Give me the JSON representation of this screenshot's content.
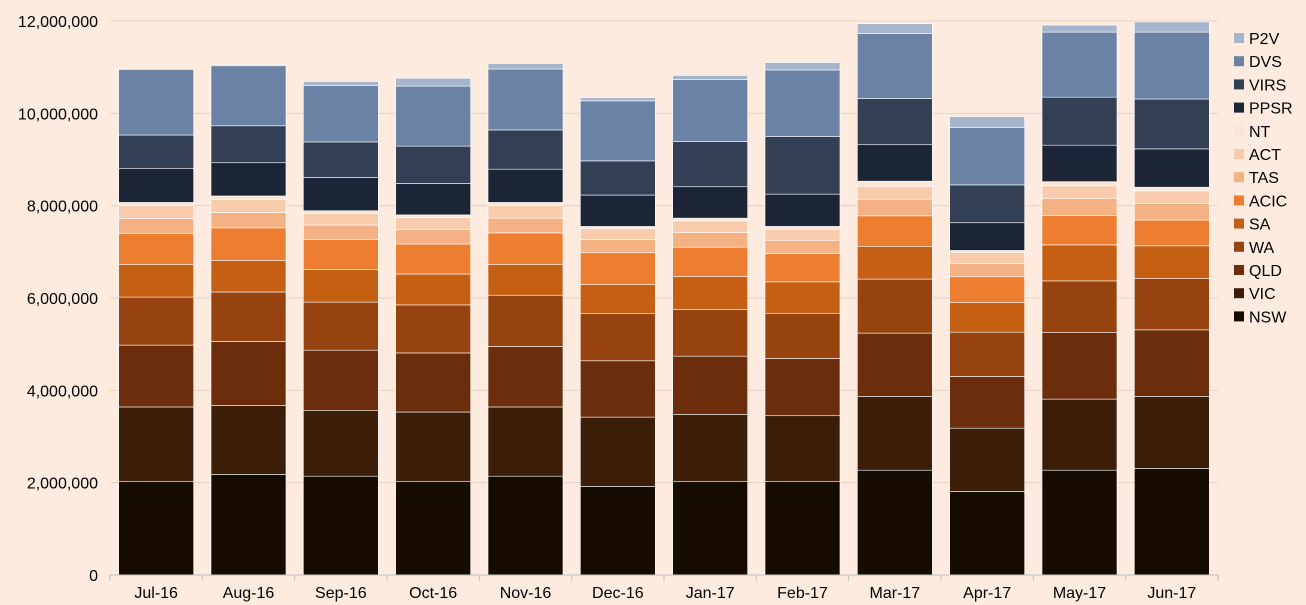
{
  "chart_data": {
    "type": "bar",
    "stacked": true,
    "title": "",
    "xlabel": "",
    "ylabel": "",
    "ylim": [
      0,
      12000000
    ],
    "yticks": [
      0,
      2000000,
      4000000,
      6000000,
      8000000,
      10000000,
      12000000
    ],
    "ytick_labels": [
      "0",
      "2,000,000",
      "4,000,000",
      "6,000,000",
      "8,000,000",
      "10,000,000",
      "12,000,000"
    ],
    "grid": true,
    "legend_position": "right",
    "categories": [
      "Jul-16",
      "Aug-16",
      "Sep-16",
      "Oct-16",
      "Nov-16",
      "Dec-16",
      "Jan-17",
      "Feb-17",
      "Mar-17",
      "Apr-17",
      "May-17",
      "Jun-17"
    ],
    "series": [
      {
        "name": "NSW",
        "color": "#170c02",
        "values": [
          2030000,
          2180000,
          2140000,
          2030000,
          2140000,
          1920000,
          2030000,
          2030000,
          2270000,
          1810000,
          2270000,
          2310000
        ]
      },
      {
        "name": "VIC",
        "color": "#3b1d08",
        "values": [
          1610000,
          1490000,
          1420000,
          1500000,
          1500000,
          1500000,
          1450000,
          1420000,
          1600000,
          1370000,
          1540000,
          1560000
        ]
      },
      {
        "name": "QLD",
        "color": "#6b2d0b",
        "values": [
          1340000,
          1390000,
          1310000,
          1280000,
          1310000,
          1220000,
          1260000,
          1240000,
          1370000,
          1120000,
          1440000,
          1440000
        ]
      },
      {
        "name": "WA",
        "color": "#96430f",
        "values": [
          1040000,
          1070000,
          1040000,
          1040000,
          1110000,
          1020000,
          1010000,
          980000,
          1170000,
          960000,
          1120000,
          1110000
        ]
      },
      {
        "name": "SA",
        "color": "#c55f14",
        "values": [
          710000,
          680000,
          710000,
          670000,
          670000,
          630000,
          720000,
          680000,
          710000,
          640000,
          780000,
          710000
        ]
      },
      {
        "name": "ACIC",
        "color": "#ed7d31",
        "values": [
          670000,
          710000,
          650000,
          650000,
          680000,
          690000,
          630000,
          610000,
          660000,
          560000,
          640000,
          560000
        ]
      },
      {
        "name": "TAS",
        "color": "#f4b183",
        "values": [
          320000,
          330000,
          310000,
          310000,
          320000,
          290000,
          320000,
          290000,
          360000,
          290000,
          370000,
          360000
        ]
      },
      {
        "name": "ACT",
        "color": "#f8cbad",
        "values": [
          280000,
          280000,
          250000,
          260000,
          270000,
          230000,
          250000,
          240000,
          280000,
          240000,
          270000,
          270000
        ]
      },
      {
        "name": "NT",
        "color": "#fbe5d6",
        "values": [
          70000,
          80000,
          60000,
          60000,
          70000,
          50000,
          60000,
          60000,
          110000,
          40000,
          90000,
          80000
        ]
      },
      {
        "name": "PPSR",
        "color": "#1c2536",
        "values": [
          740000,
          720000,
          720000,
          680000,
          720000,
          680000,
          680000,
          700000,
          790000,
          600000,
          790000,
          830000
        ]
      },
      {
        "name": "VIRS",
        "color": "#323f55",
        "values": [
          720000,
          800000,
          770000,
          810000,
          850000,
          740000,
          980000,
          1250000,
          1000000,
          820000,
          1040000,
          1080000
        ]
      },
      {
        "name": "DVS",
        "color": "#6a82a4",
        "values": [
          1420000,
          1300000,
          1220000,
          1300000,
          1320000,
          1300000,
          1340000,
          1440000,
          1410000,
          1240000,
          1410000,
          1450000
        ]
      },
      {
        "name": "P2V",
        "color": "#a6b5cb",
        "values": [
          0,
          20000,
          90000,
          170000,
          120000,
          70000,
          90000,
          160000,
          210000,
          240000,
          150000,
          220000
        ]
      }
    ]
  }
}
